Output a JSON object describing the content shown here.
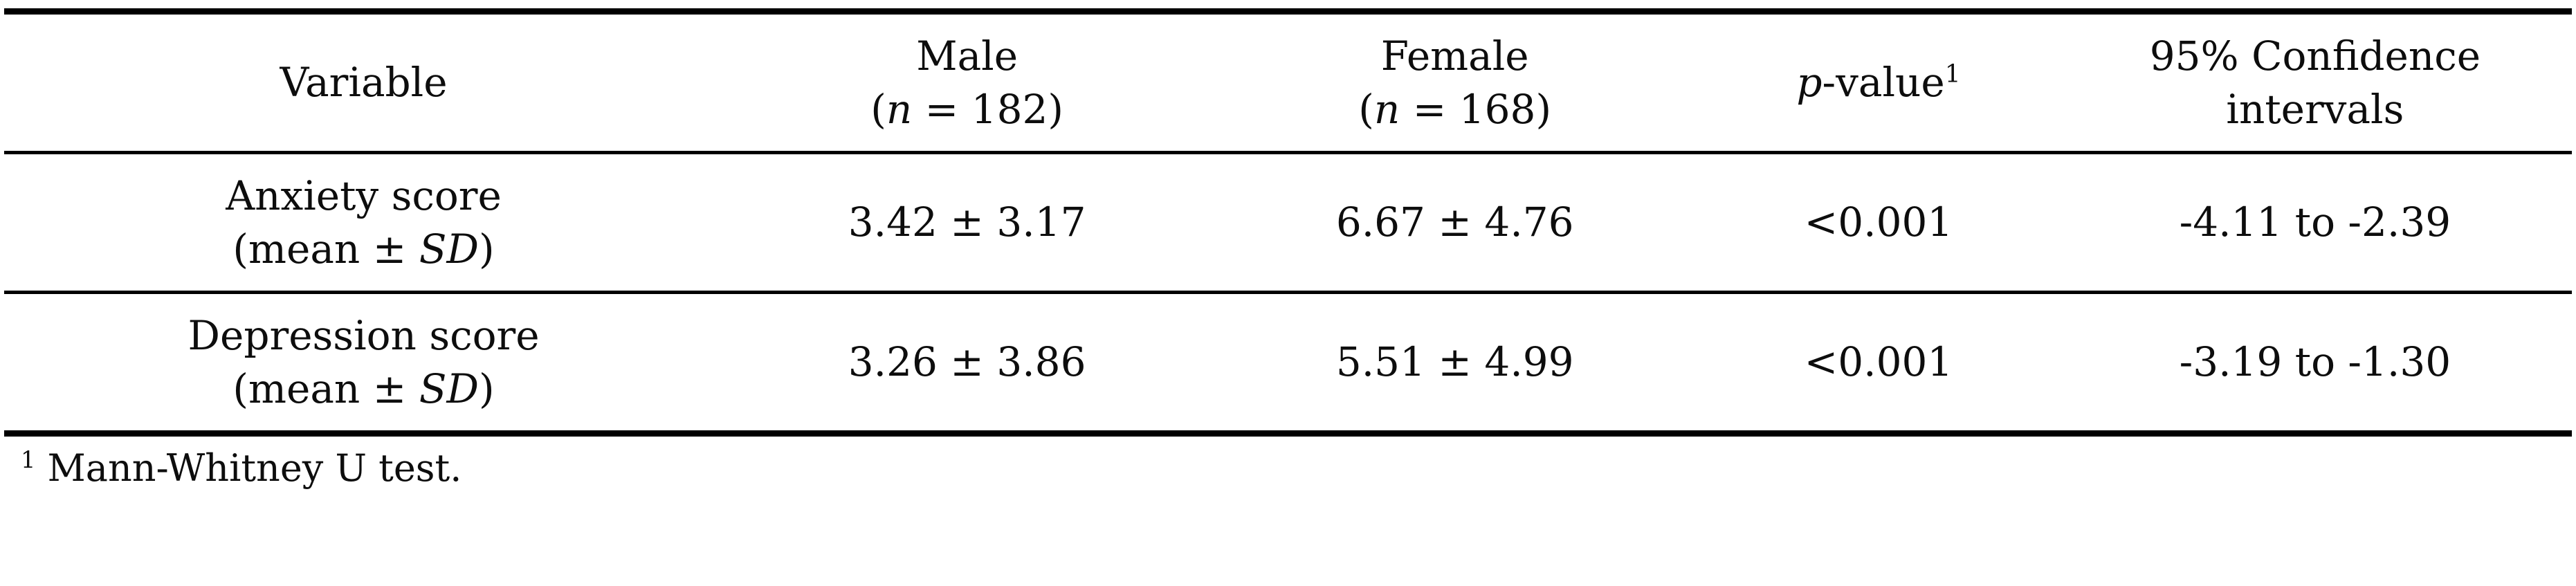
{
  "table": {
    "headers": {
      "variable": "Variable",
      "male": {
        "line1": "Male",
        "paren_open": "(",
        "n_italic": "n",
        "n_rest": " = 182)"
      },
      "female": {
        "line1": "Female",
        "paren_open": "(",
        "n_italic": "n",
        "n_rest": " = 168)"
      },
      "p_value": {
        "italic": "p",
        "rest": "-value",
        "superscript": "1"
      },
      "ci": {
        "line1": "95% Confidence",
        "line2": "intervals"
      }
    },
    "rows": [
      {
        "variable_line1": "Anxiety score",
        "variable_line2_prefix": "(mean ± ",
        "variable_line2_italic": "SD",
        "variable_line2_suffix": ")",
        "male": "3.42 ± 3.17",
        "female": "6.67 ± 4.76",
        "p_value": "<0.001",
        "ci": "-4.11 to -2.39"
      },
      {
        "variable_line1": "Depression score",
        "variable_line2_prefix": "(mean ± ",
        "variable_line2_italic": "SD",
        "variable_line2_suffix": ")",
        "male": "3.26 ± 3.86",
        "female": "5.51 ± 4.99",
        "p_value": "<0.001",
        "ci": "-3.19 to -1.30"
      }
    ]
  },
  "footnote": {
    "superscript": "1",
    "text": " Mann-Whitney U test."
  }
}
